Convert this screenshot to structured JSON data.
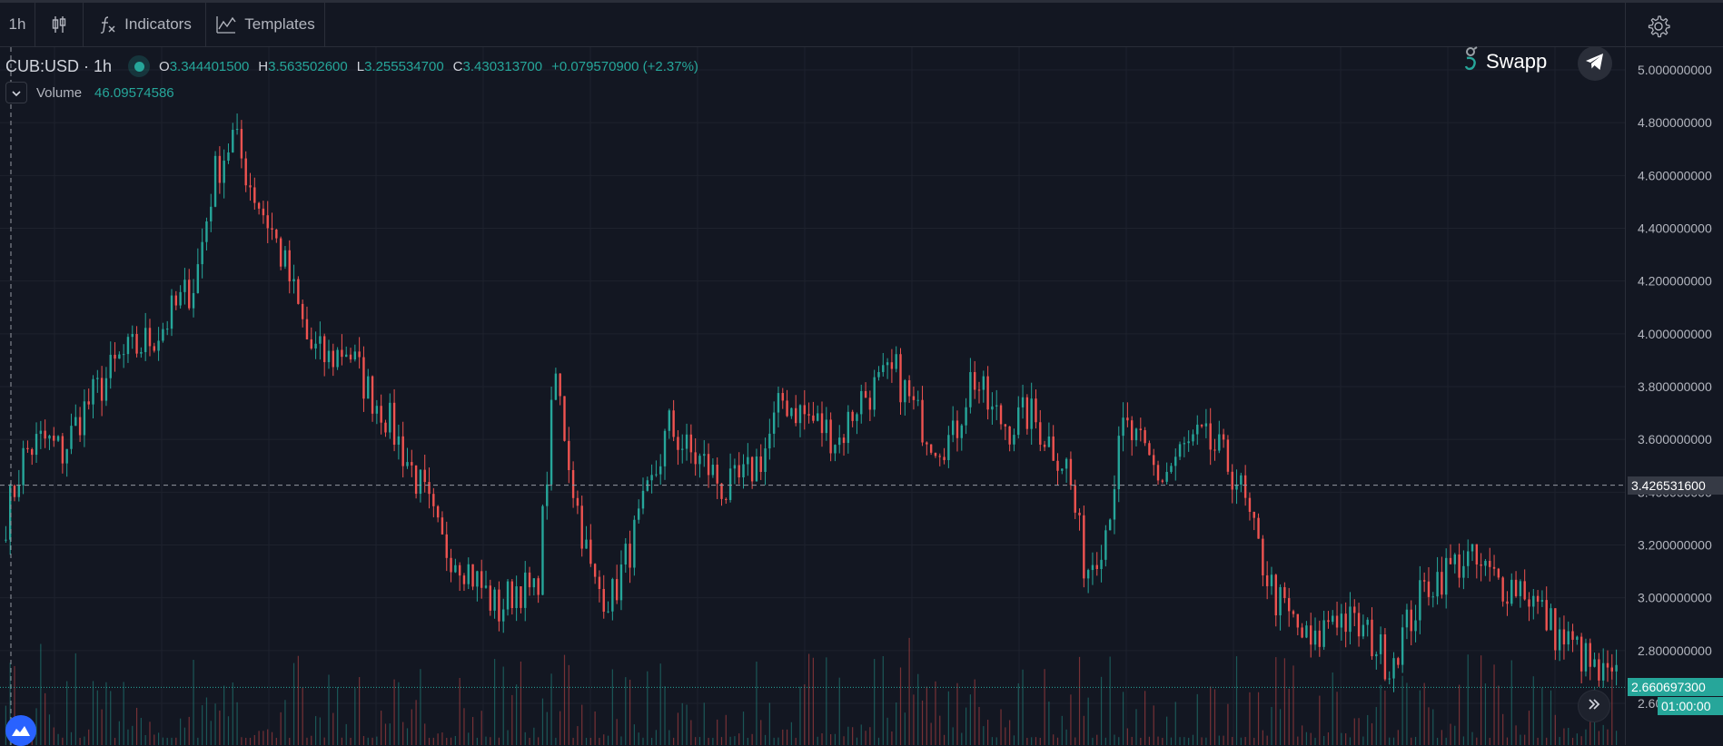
{
  "toolbar": {
    "interval": "1h",
    "indicators_label": "Indicators",
    "templates_label": "Templates"
  },
  "legend": {
    "symbol": "CUB:USD · 1h",
    "open_key": "O",
    "open": "3.344401500",
    "high_key": "H",
    "high": "3.563502600",
    "low_key": "L",
    "low": "3.255534700",
    "close_key": "C",
    "close": "3.430313700",
    "change": "+0.079570900 (+2.37%)"
  },
  "volume": {
    "name": "Volume",
    "value": "46.09574586"
  },
  "brand": {
    "name": "Swapp"
  },
  "colors": {
    "background": "#131722",
    "up": "#26a69a",
    "down": "#ef5350",
    "grid": "#1e222d",
    "axis_text": "#b2b5be"
  },
  "icons": {
    "chart_type": "candlestick-icon",
    "indicators": "function-icon",
    "templates": "templates-icon",
    "settings": "gear-icon",
    "telegram": "telegram-icon",
    "scroll": "double-chevron-right-icon",
    "logo": "tradingview-logo-icon"
  },
  "chart_data": {
    "type": "candlestick",
    "interval": "1h",
    "ylim": [
      2.55,
      5.05
    ],
    "y_ticks": [
      "5.000000000",
      "4.800000000",
      "4.600000000",
      "4.400000000",
      "4.200000000",
      "4.000000000",
      "3.800000000",
      "3.600000000",
      "3.400000000",
      "3.200000000",
      "3.000000000",
      "2.800000000",
      "2.600000000"
    ],
    "y_tick_values": [
      5.0,
      4.8,
      4.6,
      4.4,
      4.2,
      4.0,
      3.8,
      3.6,
      3.4,
      3.2,
      3.0,
      2.8,
      2.6
    ],
    "crosshair_price": "3.426531600",
    "crosshair_value": 3.4265316,
    "last_price": "2.660697300",
    "last_value": 2.6606973,
    "countdown": "01:00:00",
    "close_path": [
      3.3,
      3.55,
      3.6,
      3.55,
      3.7,
      3.8,
      3.9,
      3.95,
      4.0,
      4.1,
      4.2,
      4.6,
      4.75,
      4.55,
      4.4,
      4.2,
      3.95,
      3.9,
      3.95,
      3.8,
      3.7,
      3.55,
      3.4,
      3.2,
      3.15,
      3.05,
      2.95,
      3.05,
      3.0,
      3.85,
      3.4,
      3.05,
      3.0,
      3.2,
      3.4,
      3.65,
      3.55,
      3.5,
      3.4,
      3.45,
      3.55,
      3.75,
      3.7,
      3.65,
      3.6,
      3.75,
      3.8,
      3.85,
      3.7,
      3.6,
      3.6,
      3.85,
      3.7,
      3.65,
      3.7,
      3.6,
      3.5,
      3.1,
      3.25,
      3.65,
      3.55,
      3.45,
      3.55,
      3.6,
      3.55,
      3.45,
      3.2,
      3.0,
      2.9,
      2.8,
      2.95,
      2.9,
      2.85,
      2.75,
      2.9,
      3.05,
      3.1,
      3.15,
      3.1,
      3.05,
      3.05,
      2.95,
      2.85,
      2.8,
      2.7,
      2.68
    ]
  }
}
